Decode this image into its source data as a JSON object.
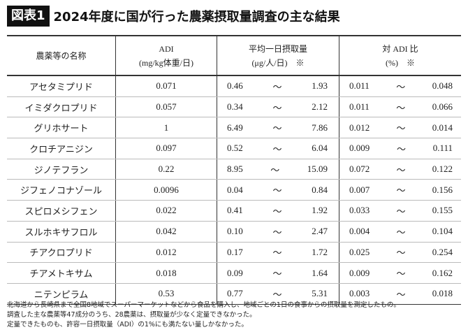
{
  "header": {
    "label": "図表1",
    "title": "2024年度に国が行った農薬摂取量調査の主な結果"
  },
  "table": {
    "columns": [
      {
        "lines": [
          "農薬等の名称"
        ]
      },
      {
        "lines": [
          "ADI",
          "(mg/kg体重/日)"
        ]
      },
      {
        "lines": [
          "平均一日摂取量",
          "(μg/人/日)　※"
        ]
      },
      {
        "lines": [
          "対 ADI 比",
          "(%)　※"
        ]
      }
    ],
    "range_sep": "～",
    "rows": [
      [
        "アセタミプリド",
        "0.071",
        "0.46",
        "1.93",
        "0.011",
        "0.048"
      ],
      [
        "イミダクロプリド",
        "0.057",
        "0.34",
        "2.12",
        "0.011",
        "0.066"
      ],
      [
        "グリホサート",
        "1",
        "6.49",
        "7.86",
        "0.012",
        "0.014"
      ],
      [
        "クロチアニジン",
        "0.097",
        "0.52",
        "6.04",
        "0.009",
        "0.111"
      ],
      [
        "ジノテフラン",
        "0.22",
        "8.95",
        "15.09",
        "0.072",
        "0.122"
      ],
      [
        "ジフェノコナゾール",
        "0.0096",
        "0.04",
        "0.84",
        "0.007",
        "0.156"
      ],
      [
        "スピロメシフェン",
        "0.022",
        "0.41",
        "1.92",
        "0.033",
        "0.155"
      ],
      [
        "スルホキサフロル",
        "0.042",
        "0.10",
        "2.47",
        "0.004",
        "0.104"
      ],
      [
        "チアクロプリド",
        "0.012",
        "0.17",
        "1.72",
        "0.025",
        "0.254"
      ],
      [
        "チアメトキサム",
        "0.018",
        "0.09",
        "1.64",
        "0.009",
        "0.162"
      ],
      [
        "ニテンピラム",
        "0.53",
        "0.77",
        "5.31",
        "0.003",
        "0.018"
      ]
    ]
  },
  "notes": [
    "北海道から長崎県まで全国8地域でスーパーマーケットなどから食品を購入し、地域ごとの1日の食事からの摂取量を測定したもの。",
    "調査した主な農薬等47成分のうち、28農薬は、摂取量が少なく定量できなかった。",
    "定量できたものも、許容一日摂取量（ADI）の1%にも満たない量しかなかった。"
  ]
}
